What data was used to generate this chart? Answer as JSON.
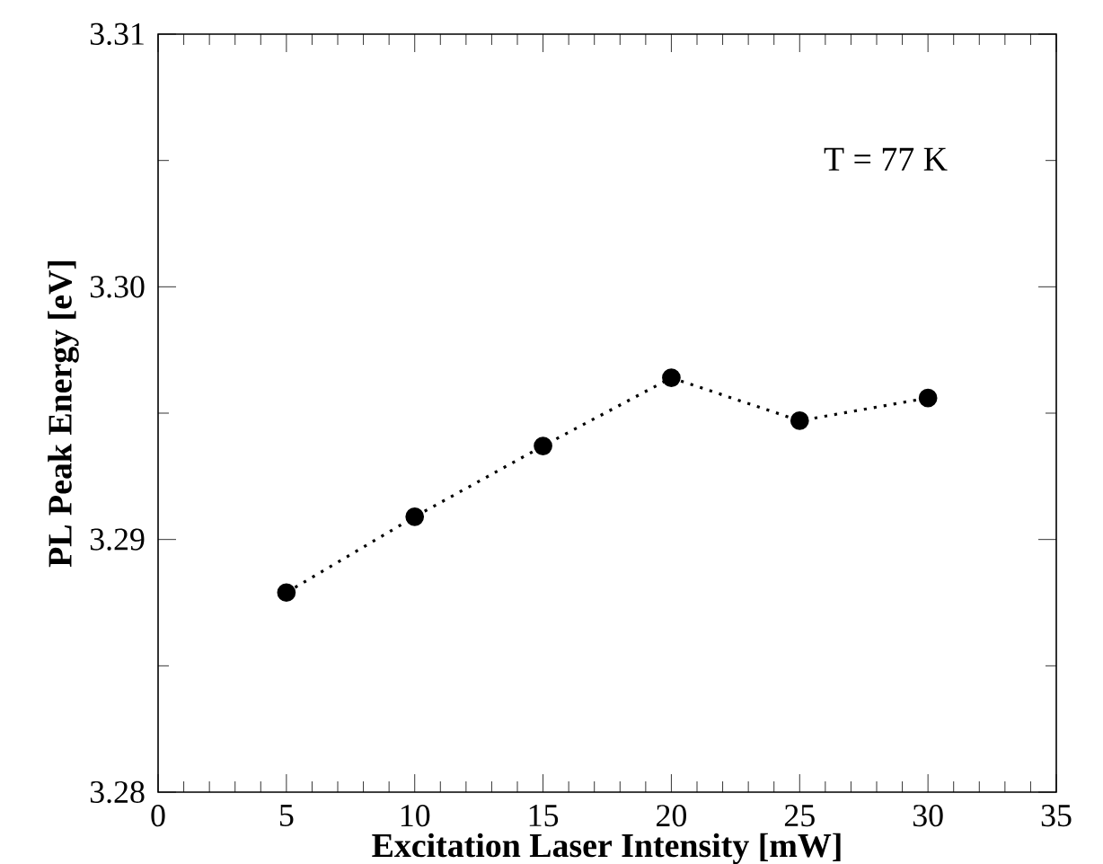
{
  "chart_data": {
    "type": "line",
    "xlabel": "Excitation Laser Intensity [mW]",
    "ylabel": "PL Peak Energy [eV]",
    "annotations": [
      "T = 77 K"
    ],
    "x": [
      5,
      10,
      15,
      20,
      25,
      30
    ],
    "series": [
      {
        "color": "#000000",
        "values": [
          3.2879,
          3.2909,
          3.2937,
          3.2964,
          3.2947,
          3.2956
        ]
      }
    ],
    "xlim": [
      0,
      35
    ],
    "xticks": [
      0,
      5,
      10,
      15,
      20,
      25,
      30,
      35
    ],
    "ylim": [
      3.28,
      3.31
    ],
    "yticks": [
      {
        "value": 3.28,
        "label": "3.28"
      },
      {
        "value": 3.29,
        "label": "3.29"
      },
      {
        "value": 3.3,
        "label": "3.30"
      },
      {
        "value": 3.31,
        "label": "3.31"
      }
    ],
    "grid": false,
    "marker": "circle",
    "line_style": "dotted"
  }
}
